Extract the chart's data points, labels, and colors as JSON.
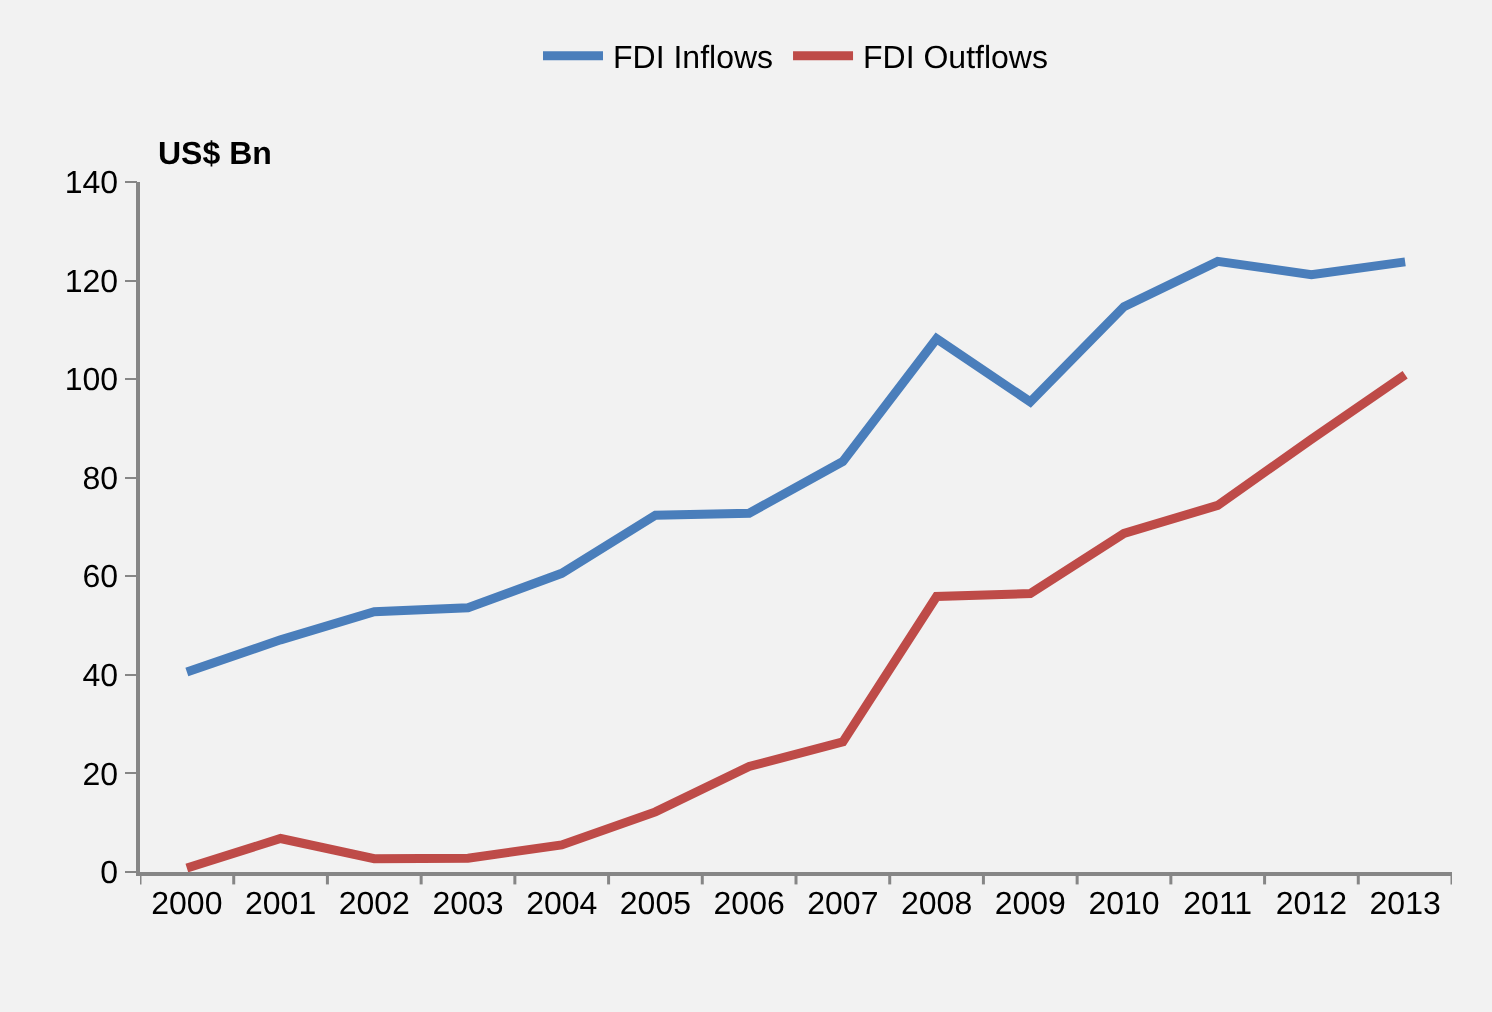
{
  "chart_data": {
    "type": "line",
    "ylabel": "US$ Bn",
    "categories": [
      "2000",
      "2001",
      "2002",
      "2003",
      "2004",
      "2005",
      "2006",
      "2007",
      "2008",
      "2009",
      "2010",
      "2011",
      "2012",
      "2013"
    ],
    "series": [
      {
        "name": "FDI Inflows",
        "color": "#4a7ebb",
        "values": [
          40.6,
          47.1,
          52.8,
          53.6,
          60.6,
          72.4,
          72.8,
          83.3,
          108.2,
          95.4,
          114.7,
          123.9,
          121.2,
          123.8
        ]
      },
      {
        "name": "FDI Outflows",
        "color": "#be4b48",
        "values": [
          0.8,
          6.8,
          2.7,
          2.8,
          5.5,
          12.2,
          21.4,
          26.4,
          55.9,
          56.5,
          68.7,
          74.4,
          87.8,
          100.9
        ]
      }
    ],
    "ylim": [
      0,
      140
    ],
    "yticks": [
      0,
      20,
      40,
      60,
      80,
      100,
      120,
      140
    ],
    "grid": false,
    "legend": "top",
    "marker": "none",
    "line_style": "solid"
  }
}
